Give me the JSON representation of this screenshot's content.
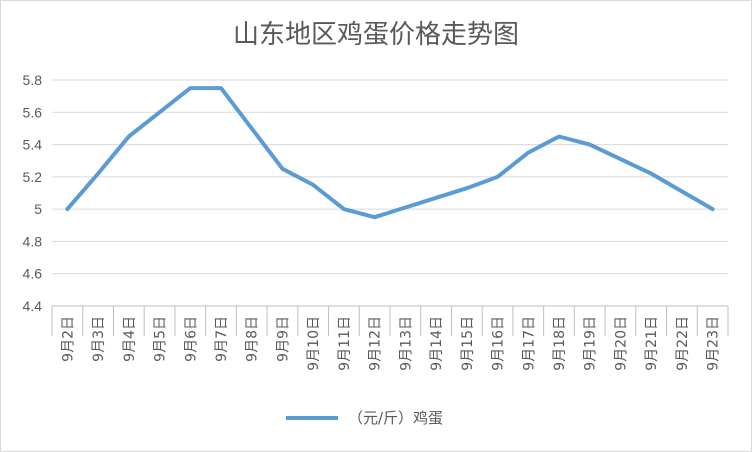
{
  "chart_data": {
    "type": "line",
    "title": "山东地区鸡蛋价格走势图",
    "categories": [
      "9月2日",
      "9月3日",
      "9月4日",
      "9月5日",
      "9月6日",
      "9月7日",
      "9月8日",
      "9月9日",
      "9月10日",
      "9月11日",
      "9月12日",
      "9月13日",
      "9月14日",
      "9月15日",
      "9月16日",
      "9月17日",
      "9月18日",
      "9月19日",
      "9月20日",
      "9月21日",
      "9月22日",
      "9月23日"
    ],
    "series": [
      {
        "name": "（元/斤）鸡蛋",
        "color": "#5b9bd5",
        "values": [
          5.0,
          5.22,
          5.45,
          5.6,
          5.75,
          5.75,
          5.5,
          5.25,
          5.15,
          5.0,
          4.95,
          5.01,
          5.07,
          5.13,
          5.2,
          5.35,
          5.45,
          5.4,
          5.31,
          5.22,
          5.11,
          5.0
        ]
      }
    ],
    "yticks": [
      "4.4",
      "4.6",
      "4.8",
      "5",
      "5.2",
      "5.4",
      "5.6",
      "5.8"
    ],
    "ylim": [
      4.4,
      5.8
    ],
    "grid": true,
    "legend_position": "bottom"
  }
}
